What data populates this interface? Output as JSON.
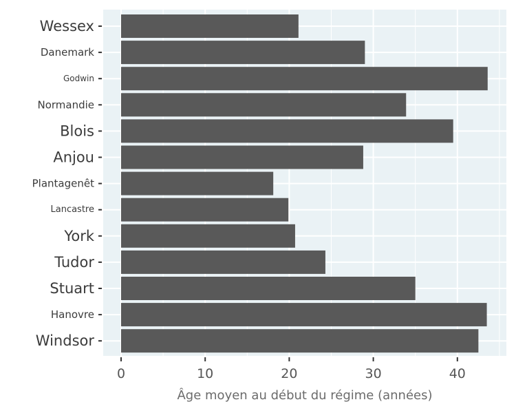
{
  "chart_data": {
    "type": "bar",
    "orientation": "horizontal",
    "categories": [
      "Wessex",
      "Danemark",
      "Godwin",
      "Normandie",
      "Blois",
      "Anjou",
      "Plantagenêt",
      "Lancastre",
      "York",
      "Tudor",
      "Stuart",
      "Hanovre",
      "Windsor"
    ],
    "values": [
      21.1,
      29.0,
      43.6,
      33.9,
      39.5,
      28.8,
      18.1,
      19.9,
      20.7,
      24.3,
      35.0,
      43.5,
      42.5
    ],
    "title": "",
    "xlabel": "Âge moyen au début du régime (années)",
    "ylabel": "",
    "xlim": [
      -2.2,
      45.7
    ],
    "xticks": [
      0,
      10,
      20,
      30,
      40
    ],
    "grid": true,
    "colors": {
      "bar": "#595959",
      "panel_background": "#eaf2f5",
      "grid_major": "#ffffff"
    }
  }
}
